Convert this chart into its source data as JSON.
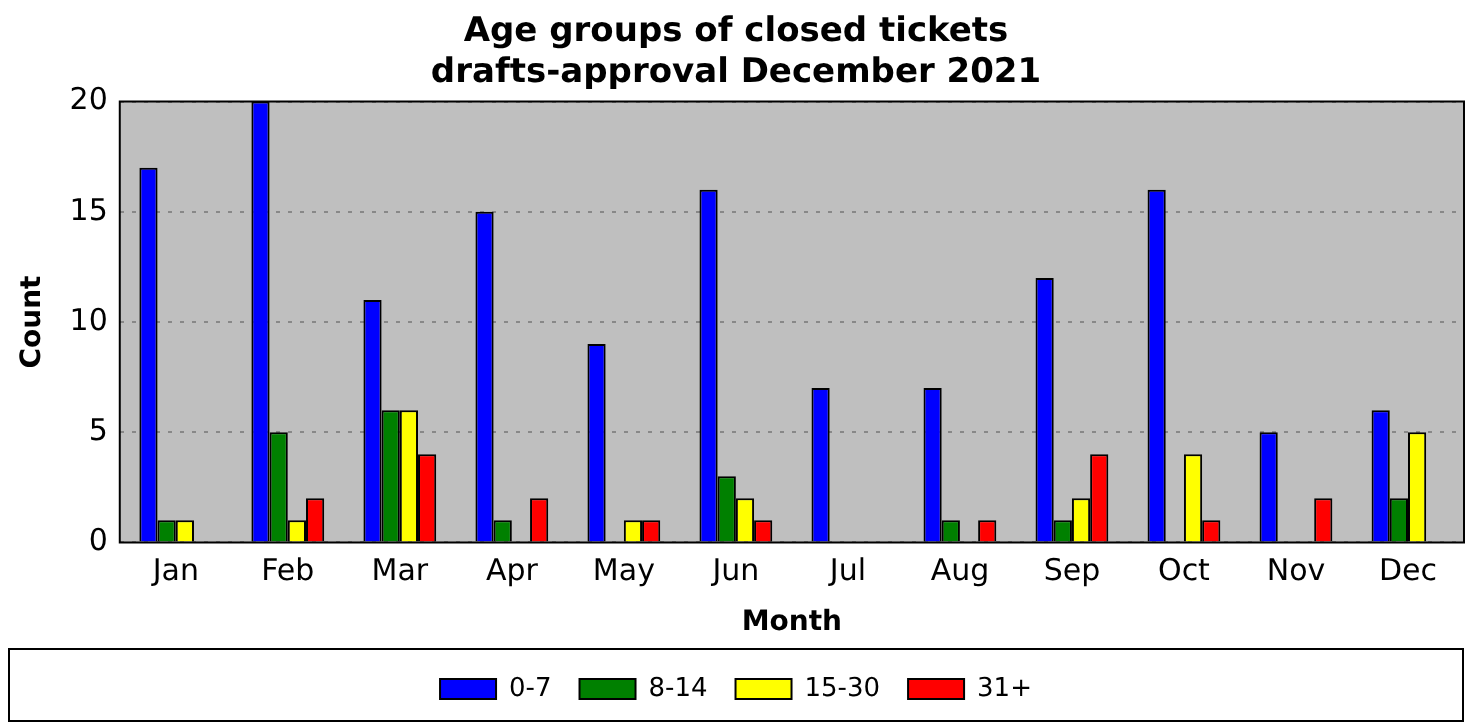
{
  "chart_data": {
    "type": "bar",
    "title": "Age groups of closed tickets\ndrafts-approval December 2021",
    "xlabel": "Month",
    "ylabel": "Count",
    "categories": [
      "Jan",
      "Feb",
      "Mar",
      "Apr",
      "May",
      "Jun",
      "Jul",
      "Aug",
      "Sep",
      "Oct",
      "Nov",
      "Dec"
    ],
    "series": [
      {
        "name": "0-7",
        "color": "#0000ff",
        "values": [
          17,
          20,
          11,
          15,
          9,
          16,
          7,
          7,
          12,
          16,
          5,
          6
        ]
      },
      {
        "name": "8-14",
        "color": "#008000",
        "values": [
          1,
          5,
          6,
          1,
          0,
          3,
          0,
          1,
          1,
          0,
          0,
          2
        ]
      },
      {
        "name": "15-30",
        "color": "#ffff00",
        "values": [
          1,
          1,
          6,
          0,
          1,
          2,
          0,
          0,
          2,
          4,
          0,
          5
        ]
      },
      {
        "name": "31+",
        "color": "#ff0000",
        "values": [
          0,
          2,
          4,
          2,
          1,
          1,
          0,
          1,
          4,
          1,
          2,
          0
        ]
      }
    ],
    "ylim": [
      0,
      20
    ],
    "yticks": [
      0,
      5,
      10,
      15,
      20
    ],
    "grid": "y",
    "legend": "bottom"
  }
}
